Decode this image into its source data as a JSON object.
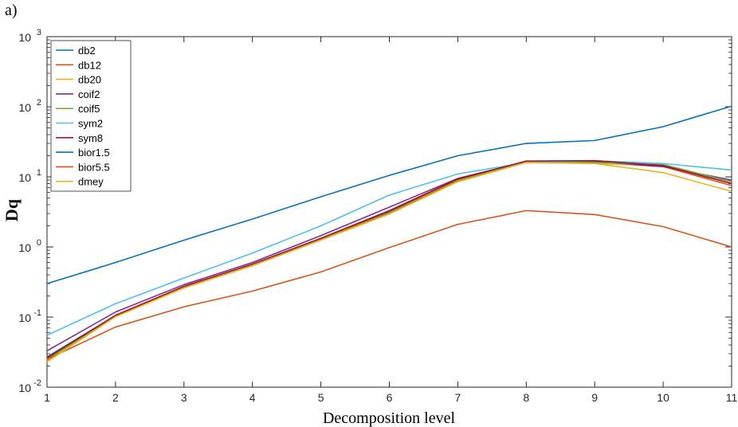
{
  "panel_label": "a)",
  "chart_data": {
    "type": "line",
    "title": "",
    "xlabel": "Decomposition level",
    "ylabel": "Dq",
    "xlim": [
      1,
      11
    ],
    "ylim": [
      0.01,
      1000
    ],
    "yscale": "log",
    "grid": false,
    "legend_position": "top-left",
    "x": [
      1,
      2,
      3,
      4,
      5,
      6,
      7,
      8,
      9,
      10,
      11
    ],
    "x_ticks": [
      "1",
      "2",
      "3",
      "4",
      "5",
      "6",
      "7",
      "8",
      "9",
      "10",
      "11"
    ],
    "y_ticks": [
      {
        "value": 0.01,
        "base": "10",
        "exp": "-2"
      },
      {
        "value": 0.1,
        "base": "10",
        "exp": "-1"
      },
      {
        "value": 1,
        "base": "10",
        "exp": "0"
      },
      {
        "value": 10,
        "base": "10",
        "exp": "1"
      },
      {
        "value": 100,
        "base": "10",
        "exp": "2"
      },
      {
        "value": 1000,
        "base": "10",
        "exp": "3"
      }
    ],
    "series": [
      {
        "name": "db2",
        "color": "#0072BD",
        "values": [
          0.027,
          0.105,
          0.27,
          0.56,
          1.3,
          3.2,
          9.0,
          16.5,
          16.5,
          14.5,
          8.5
        ]
      },
      {
        "name": "db12",
        "color": "#D95319",
        "values": [
          0.026,
          0.104,
          0.27,
          0.56,
          1.3,
          3.1,
          9.0,
          16.5,
          16.0,
          14.0,
          7.5
        ]
      },
      {
        "name": "db20",
        "color": "#EDB120",
        "values": [
          0.024,
          0.103,
          0.265,
          0.55,
          1.28,
          3.0,
          8.8,
          16.0,
          15.5,
          14.5,
          8.0
        ]
      },
      {
        "name": "coif2",
        "color": "#7E2F8E",
        "values": [
          0.033,
          0.118,
          0.29,
          0.6,
          1.45,
          3.7,
          9.5,
          16.5,
          16.5,
          14.0,
          9.0
        ]
      },
      {
        "name": "coif5",
        "color": "#77AC30",
        "values": [
          0.025,
          0.102,
          0.262,
          0.54,
          1.27,
          3.0,
          8.8,
          16.2,
          16.0,
          15.0,
          8.5
        ]
      },
      {
        "name": "sym2",
        "color": "#4DBEEE",
        "values": [
          0.055,
          0.155,
          0.36,
          0.82,
          2.0,
          5.5,
          11.0,
          16.0,
          17.0,
          15.5,
          12.5
        ]
      },
      {
        "name": "sym8",
        "color": "#A2142F",
        "values": [
          0.026,
          0.106,
          0.275,
          0.57,
          1.33,
          3.3,
          9.3,
          16.8,
          17.0,
          14.5,
          8.0
        ]
      },
      {
        "name": "bior1.5",
        "color": "#0072BD",
        "values": [
          0.3,
          0.6,
          1.25,
          2.5,
          5.2,
          10.5,
          20.0,
          30.0,
          33.0,
          52.0,
          102.0
        ]
      },
      {
        "name": "bior5.5",
        "color": "#D95319",
        "values": [
          0.025,
          0.072,
          0.14,
          0.235,
          0.44,
          0.98,
          2.1,
          3.3,
          2.9,
          1.95,
          1.0
        ]
      },
      {
        "name": "dmey",
        "color": "#EDB120",
        "values": [
          0.023,
          0.101,
          0.26,
          0.54,
          1.25,
          2.95,
          8.5,
          16.0,
          15.5,
          11.5,
          6.2
        ]
      }
    ]
  }
}
